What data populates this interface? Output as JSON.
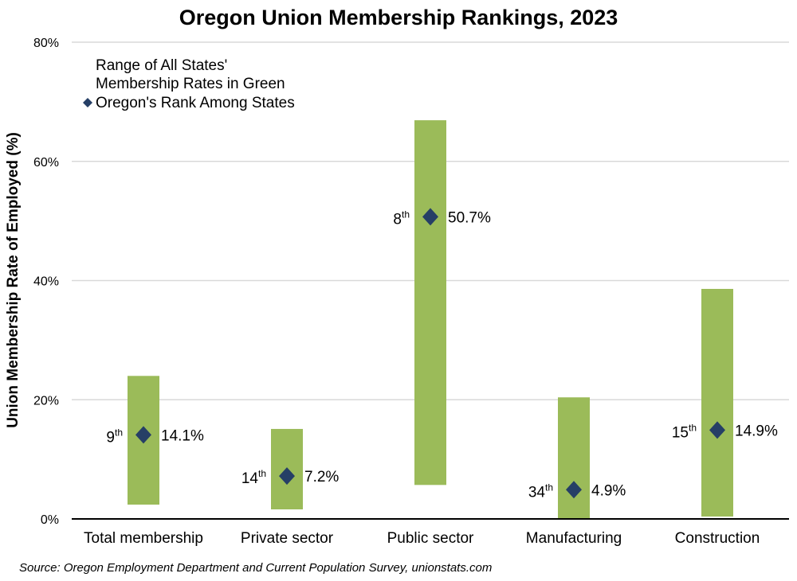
{
  "chart_data": {
    "type": "range-bar-with-markers",
    "title": "Oregon Union Membership Rankings, 2023",
    "ylabel": "Union Membership Rate of Employed (%)",
    "xlabel": "",
    "ylim": [
      0,
      80
    ],
    "yticks": [
      0,
      20,
      40,
      60,
      80
    ],
    "ytick_labels": [
      "0%",
      "20%",
      "40%",
      "60%",
      "80%"
    ],
    "grid": true,
    "categories": [
      "Total membership",
      "Private sector",
      "Public sector",
      "Manufacturing",
      "Construction"
    ],
    "range_low": [
      2.4,
      1.6,
      5.7,
      0.0,
      0.4
    ],
    "range_high": [
      24.0,
      15.1,
      66.9,
      20.4,
      38.6
    ],
    "oregon_values": [
      14.1,
      7.2,
      50.7,
      4.9,
      14.9
    ],
    "value_labels": [
      "14.1%",
      "7.2%",
      "50.7%",
      "4.9%",
      "14.9%"
    ],
    "rank_numbers": [
      "9",
      "14",
      "8",
      "34",
      "15"
    ],
    "rank_suffix": "th",
    "legend": {
      "line1": "Range of All States'",
      "line2": "Membership Rates in Green",
      "marker_label": "Oregon's Rank Among States",
      "placement": "top-left"
    },
    "source": "Source: Oregon Employment Department and Current Population Survey, unionstats.com",
    "colors": {
      "range": "#9bbb59",
      "marker": "#263f66",
      "grid": "#d9d9d9",
      "axis": "#000000"
    }
  }
}
